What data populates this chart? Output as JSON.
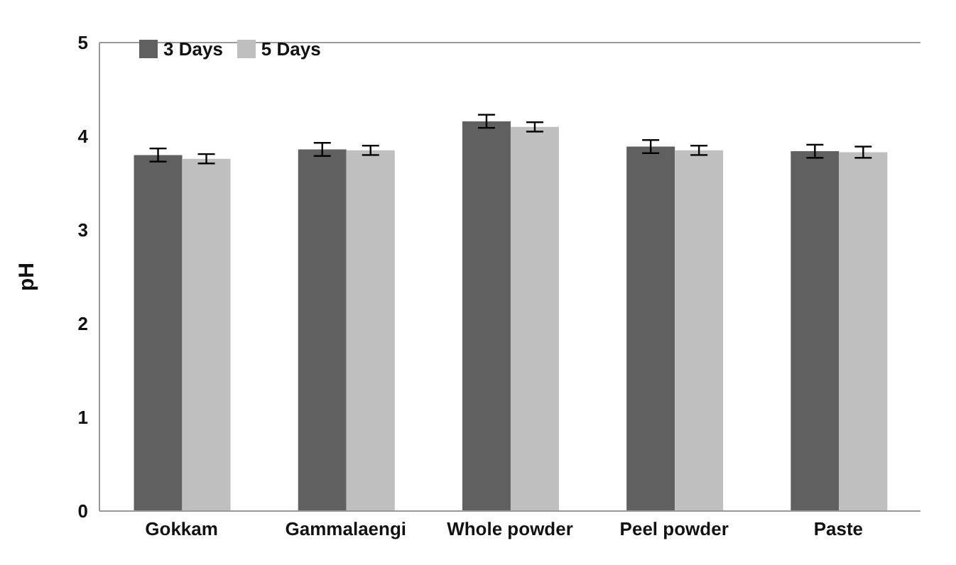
{
  "chart_data": {
    "type": "bar",
    "ylabel": "pH",
    "categories": [
      "Gokkam",
      "Gammalaengi",
      "Whole powder",
      "Peel powder",
      "Paste"
    ],
    "series": [
      {
        "name": "3 Days",
        "color": "#606060",
        "values": [
          3.8,
          3.86,
          4.16,
          3.89,
          3.84
        ],
        "errors": [
          0.07,
          0.07,
          0.07,
          0.07,
          0.07
        ]
      },
      {
        "name": "5 Days",
        "color": "#bfbfbf",
        "values": [
          3.76,
          3.85,
          4.1,
          3.85,
          3.83
        ],
        "errors": [
          0.05,
          0.05,
          0.05,
          0.05,
          0.06
        ]
      }
    ],
    "ylim": [
      0,
      5
    ],
    "yticks": [
      0,
      1,
      2,
      3,
      4,
      5
    ],
    "grid": false,
    "legend": "top left"
  }
}
